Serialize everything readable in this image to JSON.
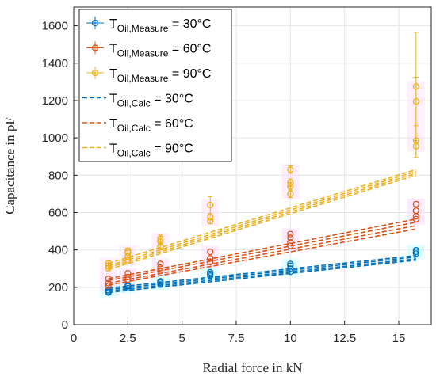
{
  "chart_data": {
    "type": "scatter",
    "xlabel": "Radial force in kN",
    "ylabel": "Capacitance in pF",
    "xlim": [
      0,
      16.5
    ],
    "ylim": [
      0,
      1700
    ],
    "xticks": [
      0,
      2.5,
      5,
      7.5,
      10,
      12.5,
      15
    ],
    "xtick_labels": [
      "0",
      "2.5",
      "5",
      "7.5",
      "10",
      "12.5",
      "15"
    ],
    "yticks": [
      0,
      200,
      400,
      600,
      800,
      1000,
      1200,
      1400,
      1600
    ],
    "ytick_labels": [
      "0",
      "200",
      "400",
      "600",
      "800",
      "1000",
      "1200",
      "1400",
      "1600"
    ],
    "grid": true,
    "legend_position": "top-left",
    "measured_series": [
      {
        "legend_main": "T",
        "legend_sub": "Oil,Measure",
        "legend_tail": " = 30°C",
        "color": "#0072BD",
        "points": [
          {
            "x": 1.6,
            "y": 172
          },
          {
            "x": 1.6,
            "y": 178
          },
          {
            "x": 1.6,
            "y": 185
          },
          {
            "x": 2.5,
            "y": 195
          },
          {
            "x": 2.5,
            "y": 205
          },
          {
            "x": 2.5,
            "y": 210
          },
          {
            "x": 4.0,
            "y": 215
          },
          {
            "x": 4.0,
            "y": 225
          },
          {
            "x": 4.0,
            "y": 232
          },
          {
            "x": 6.3,
            "y": 262
          },
          {
            "x": 6.3,
            "y": 272
          },
          {
            "x": 6.3,
            "y": 280
          },
          {
            "x": 10.0,
            "y": 283
          },
          {
            "x": 10.0,
            "y": 300
          },
          {
            "x": 10.0,
            "y": 315
          },
          {
            "x": 10.0,
            "y": 325
          },
          {
            "x": 15.8,
            "y": 380
          },
          {
            "x": 15.8,
            "y": 390
          },
          {
            "x": 15.8,
            "y": 398
          }
        ]
      },
      {
        "legend_main": "T",
        "legend_sub": "Oil,Measure",
        "legend_tail": " = 60°C",
        "color": "#D95319",
        "points": [
          {
            "x": 1.6,
            "y": 208
          },
          {
            "x": 1.6,
            "y": 222
          },
          {
            "x": 1.6,
            "y": 245
          },
          {
            "x": 2.5,
            "y": 240
          },
          {
            "x": 2.5,
            "y": 255
          },
          {
            "x": 2.5,
            "y": 275
          },
          {
            "x": 4.0,
            "y": 288
          },
          {
            "x": 4.0,
            "y": 305
          },
          {
            "x": 4.0,
            "y": 325
          },
          {
            "x": 6.3,
            "y": 335
          },
          {
            "x": 6.3,
            "y": 355
          },
          {
            "x": 6.3,
            "y": 390
          },
          {
            "x": 10.0,
            "y": 422
          },
          {
            "x": 10.0,
            "y": 440
          },
          {
            "x": 10.0,
            "y": 465
          },
          {
            "x": 10.0,
            "y": 485
          },
          {
            "x": 15.8,
            "y": 565
          },
          {
            "x": 15.8,
            "y": 580
          },
          {
            "x": 15.8,
            "y": 610
          },
          {
            "x": 15.8,
            "y": 645
          }
        ]
      },
      {
        "legend_main": "T",
        "legend_sub": "Oil,Measure",
        "legend_tail": " = 90°C",
        "color": "#EDB120",
        "points": [
          {
            "x": 1.6,
            "y": 303,
            "err": 15
          },
          {
            "x": 1.6,
            "y": 315,
            "err": 15
          },
          {
            "x": 1.6,
            "y": 328,
            "err": 15
          },
          {
            "x": 2.5,
            "y": 345,
            "err": 15
          },
          {
            "x": 2.5,
            "y": 365,
            "err": 15
          },
          {
            "x": 2.5,
            "y": 385,
            "err": 15
          },
          {
            "x": 2.5,
            "y": 395,
            "err": 15
          },
          {
            "x": 4.0,
            "y": 420,
            "err": 20
          },
          {
            "x": 4.0,
            "y": 445,
            "err": 20
          },
          {
            "x": 4.0,
            "y": 460,
            "err": 20
          },
          {
            "x": 6.3,
            "y": 555,
            "err": 15
          },
          {
            "x": 6.3,
            "y": 575,
            "err": 15
          },
          {
            "x": 6.3,
            "y": 640,
            "err": 45
          },
          {
            "x": 10.0,
            "y": 700,
            "err": 20
          },
          {
            "x": 10.0,
            "y": 740,
            "err": 20
          },
          {
            "x": 10.0,
            "y": 760,
            "err": 20
          },
          {
            "x": 10.0,
            "y": 830,
            "err": 20
          },
          {
            "x": 15.8,
            "y": 955,
            "err": 60
          },
          {
            "x": 15.8,
            "y": 985,
            "err": 90
          },
          {
            "x": 15.8,
            "y": 1195,
            "err": 130
          },
          {
            "x": 15.8,
            "y": 1275,
            "err": 290
          }
        ]
      }
    ],
    "calc_series": [
      {
        "legend_main": "T",
        "legend_sub": "Oil,Calc",
        "legend_tail": " = 30°C",
        "color": "#0072BD",
        "lines": [
          {
            "x": [
              1.6,
              15.8
            ],
            "y": [
              172,
              345
            ]
          },
          {
            "x": [
              1.6,
              15.8
            ],
            "y": [
              180,
              352
            ]
          },
          {
            "x": [
              1.6,
              15.8
            ],
            "y": [
              188,
              362
            ]
          },
          {
            "x": [
              1.6,
              15.8
            ],
            "y": [
              196,
              370
            ]
          }
        ]
      },
      {
        "legend_main": "T",
        "legend_sub": "Oil,Calc",
        "legend_tail": " = 60°C",
        "color": "#D95319",
        "lines": [
          {
            "x": [
              1.6,
              15.8
            ],
            "y": [
              212,
              512
            ]
          },
          {
            "x": [
              1.6,
              15.8
            ],
            "y": [
              222,
              530
            ]
          },
          {
            "x": [
              1.6,
              15.8
            ],
            "y": [
              236,
              548
            ]
          },
          {
            "x": [
              1.6,
              15.8
            ],
            "y": [
              246,
              565
            ]
          }
        ]
      },
      {
        "legend_main": "T",
        "legend_sub": "Oil,Calc",
        "legend_tail": " = 90°C",
        "color": "#EDB120",
        "lines": [
          {
            "x": [
              1.6,
              15.8
            ],
            "y": [
              295,
              800
            ]
          },
          {
            "x": [
              1.6,
              15.8
            ],
            "y": [
              305,
              810
            ]
          },
          {
            "x": [
              1.6,
              15.8
            ],
            "y": [
              315,
              820
            ]
          },
          {
            "x": [
              1.6,
              15.8
            ],
            "y": [
              328,
              830
            ]
          }
        ]
      }
    ]
  }
}
